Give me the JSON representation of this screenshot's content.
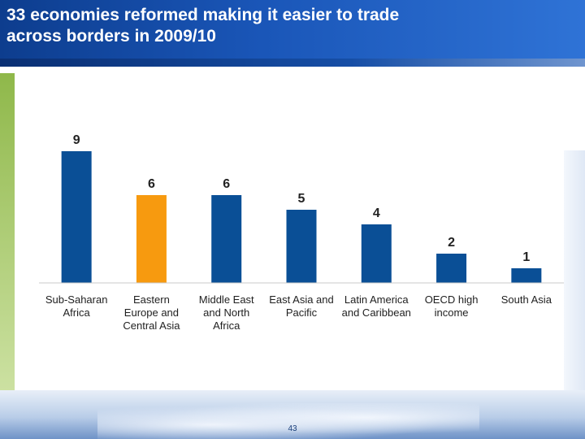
{
  "slide": {
    "title_lines": [
      "33 economies reformed making it easier to trade",
      "across borders in 2009/10"
    ],
    "page_number": "43"
  },
  "colors": {
    "bar_default": "#0a4f96",
    "bar_highlight": "#f79a0f",
    "header": "#1a56b8"
  },
  "chart_data": {
    "type": "bar",
    "title": "33 economies reformed making it easier to trade across borders in 2009/10",
    "categories": [
      [
        "Sub-Saharan",
        "Africa"
      ],
      [
        "Eastern",
        "Europe and",
        "Central Asia"
      ],
      [
        "Middle East",
        "and North",
        "Africa"
      ],
      [
        "East Asia and",
        "Pacific"
      ],
      [
        "Latin America",
        "and Caribbean"
      ],
      [
        "OECD high",
        "income"
      ],
      [
        "South Asia"
      ]
    ],
    "values": [
      9,
      6,
      6,
      5,
      4,
      2,
      1
    ],
    "highlight_index": 1,
    "ylim": [
      0,
      10
    ],
    "grid": false,
    "legend": "none"
  }
}
